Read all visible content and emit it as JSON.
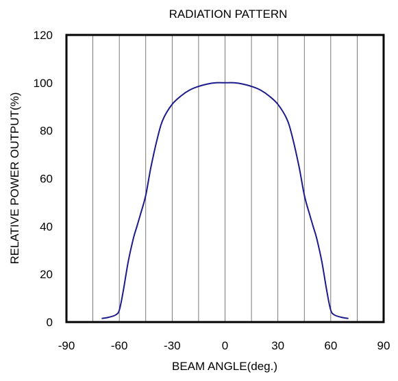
{
  "chart_data": {
    "type": "line",
    "title": "RADIATION PATTERN",
    "xlabel": "BEAM ANGLE(deg.)",
    "ylabel": "RELATIVE POWER OUTPUT(%)",
    "xlim": [
      -90,
      90
    ],
    "ylim": [
      0,
      120
    ],
    "xticks": [
      -90,
      -60,
      -30,
      0,
      30,
      60,
      90
    ],
    "yticks": [
      0,
      20,
      40,
      60,
      80,
      100,
      120
    ],
    "grid": {
      "vertical": true,
      "horizontal": false,
      "vertical_step": 15
    },
    "line_color": "#1a1a8c",
    "series": [
      {
        "x": [
          -70,
          -66,
          -62,
          -60,
          -58,
          -55,
          -52,
          -50,
          -48,
          -45,
          -42,
          -38,
          -35,
          -30,
          -25,
          -20,
          -15,
          -10,
          -5,
          0,
          5,
          10,
          15,
          20,
          25,
          30,
          35,
          38,
          42,
          45,
          48,
          50,
          52,
          55,
          58,
          60,
          62,
          66,
          70
        ],
        "y": [
          1.5,
          2,
          3,
          5,
          12,
          25,
          35,
          40,
          45,
          53,
          65,
          78,
          85,
          91,
          94.5,
          97,
          98.5,
          99.5,
          100,
          100,
          100,
          99.5,
          98.5,
          97,
          94.5,
          91,
          85,
          78,
          65,
          53,
          45,
          40,
          35,
          25,
          12,
          5,
          3,
          2,
          1.5
        ]
      }
    ]
  }
}
